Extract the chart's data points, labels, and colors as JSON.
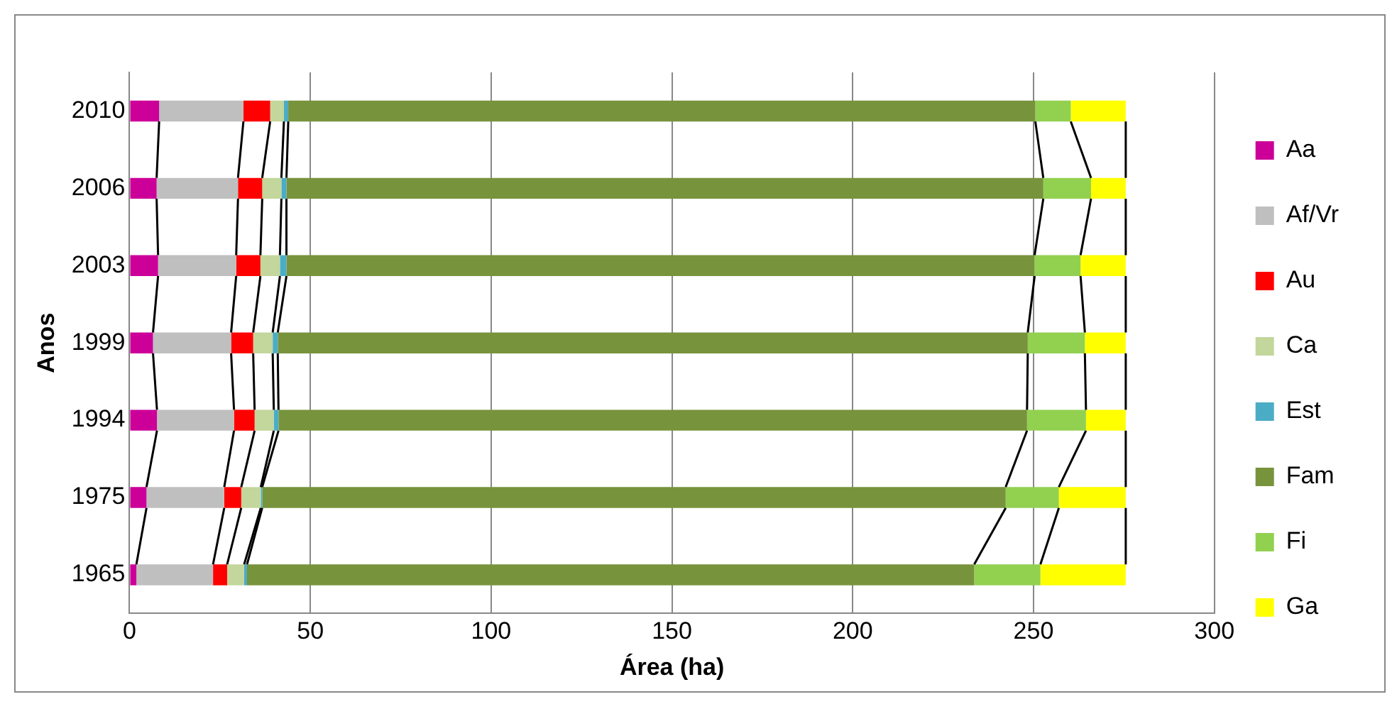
{
  "chart_data": {
    "type": "bar",
    "orientation": "horizontal",
    "stacked": true,
    "xlabel": "Área (ha)",
    "ylabel": "Anos",
    "categories": [
      "2010",
      "2006",
      "2003",
      "1999",
      "1994",
      "1975",
      "1965"
    ],
    "series": [
      {
        "name": "Aa",
        "color": "#cc0099",
        "values": [
          8.2,
          7.5,
          7.9,
          6.5,
          7.6,
          4.7,
          1.9
        ]
      },
      {
        "name": "Af/Vr",
        "color": "#bfbfbf",
        "values": [
          23.3,
          22.5,
          21.6,
          21.6,
          21.3,
          21.5,
          21.2
        ]
      },
      {
        "name": "Au",
        "color": "#ff0000",
        "values": [
          7.4,
          6.7,
          6.7,
          6.1,
          5.7,
          4.7,
          3.9
        ]
      },
      {
        "name": "Ca",
        "color": "#c3d69b",
        "values": [
          3.8,
          5.3,
          5.4,
          5.4,
          5.3,
          5.4,
          4.7
        ]
      },
      {
        "name": "Est",
        "color": "#4bacc6",
        "values": [
          1.2,
          1.4,
          1.8,
          1.4,
          1.3,
          0.4,
          0.8
        ]
      },
      {
        "name": "Fam",
        "color": "#77933c",
        "values": [
          206.6,
          209.3,
          206.9,
          207.4,
          207.0,
          205.6,
          201.1
        ]
      },
      {
        "name": "Fi",
        "color": "#92d050",
        "values": [
          9.8,
          13.2,
          12.7,
          15.8,
          16.3,
          14.7,
          18.3
        ]
      },
      {
        "name": "Ga",
        "color": "#ffff00",
        "values": [
          15.2,
          9.6,
          12.5,
          11.3,
          11.0,
          18.5,
          23.6
        ]
      }
    ],
    "xlim": [
      0,
      300
    ],
    "xticks": [
      0,
      50,
      100,
      150,
      200,
      250,
      300
    ],
    "grid": "x",
    "legend": "right"
  }
}
